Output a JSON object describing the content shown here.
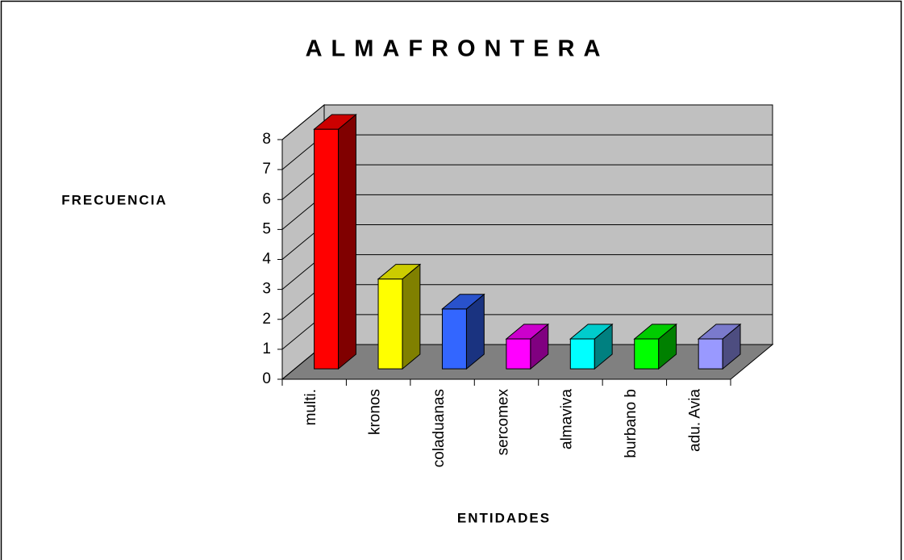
{
  "chart_data": {
    "type": "bar3d",
    "title": "ALMAFRONTERA",
    "y_label": "FRECUENCIA",
    "x_label": "ENTIDADES",
    "categories": [
      "multi.",
      "kronos",
      "coladuanas",
      "sercomex",
      "almaviva",
      "burbano b",
      "adu. Avia"
    ],
    "values": [
      8,
      3,
      2,
      1,
      1,
      1,
      1
    ],
    "colors": [
      "#ff0000",
      "#ffff00",
      "#3366ff",
      "#ff00ff",
      "#00ffff",
      "#00ff00",
      "#9999ff"
    ],
    "ylim": [
      0,
      8
    ],
    "yticks": [
      0,
      1,
      2,
      3,
      4,
      5,
      6,
      7,
      8
    ],
    "grid": true
  }
}
